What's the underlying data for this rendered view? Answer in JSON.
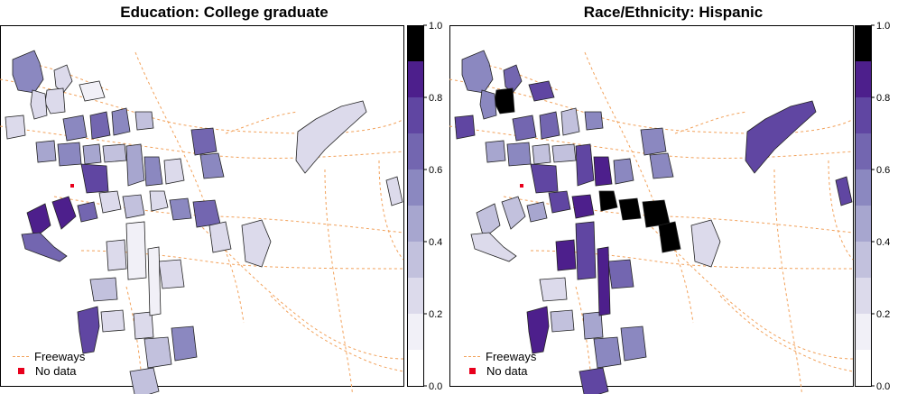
{
  "panels": [
    {
      "title": "Education: College graduate",
      "legend": {
        "freeways_label": "Freeways",
        "nodata_label": "No data"
      },
      "colorbar": {
        "ticks": [
          "0.0",
          "0.2",
          "0.4",
          "0.6",
          "0.8",
          "1.0"
        ]
      }
    },
    {
      "title": "Race/Ethnicity: Hispanic",
      "legend": {
        "freeways_label": "Freeways",
        "nodata_label": "No data"
      },
      "colorbar": {
        "ticks": [
          "0.0",
          "0.2",
          "0.4",
          "0.6",
          "0.8",
          "1.0"
        ]
      }
    }
  ],
  "colors": {
    "scale": [
      "#ffffff",
      "#f1f0f7",
      "#dcdaeb",
      "#c2c1dd",
      "#a7a6cf",
      "#8b88c0",
      "#7366b0",
      "#6046a2",
      "#4d1f8c",
      "#000000"
    ],
    "freeway": "#f2a15a",
    "nodata": "#e8001c"
  },
  "chart_data": [
    {
      "type": "choropleth",
      "title": "Education: College graduate",
      "color_scale_range": [
        0.0,
        1.0
      ],
      "color_bins": [
        0.0,
        0.1,
        0.2,
        0.3,
        0.4,
        0.5,
        0.6,
        0.7,
        0.8,
        0.9,
        1.0
      ]
    },
    {
      "type": "choropleth",
      "title": "Race/Ethnicity: Hispanic",
      "color_scale_range": [
        0.0,
        1.0
      ],
      "color_bins": [
        0.0,
        0.1,
        0.2,
        0.3,
        0.4,
        0.5,
        0.6,
        0.7,
        0.8,
        0.9,
        1.0
      ]
    }
  ]
}
